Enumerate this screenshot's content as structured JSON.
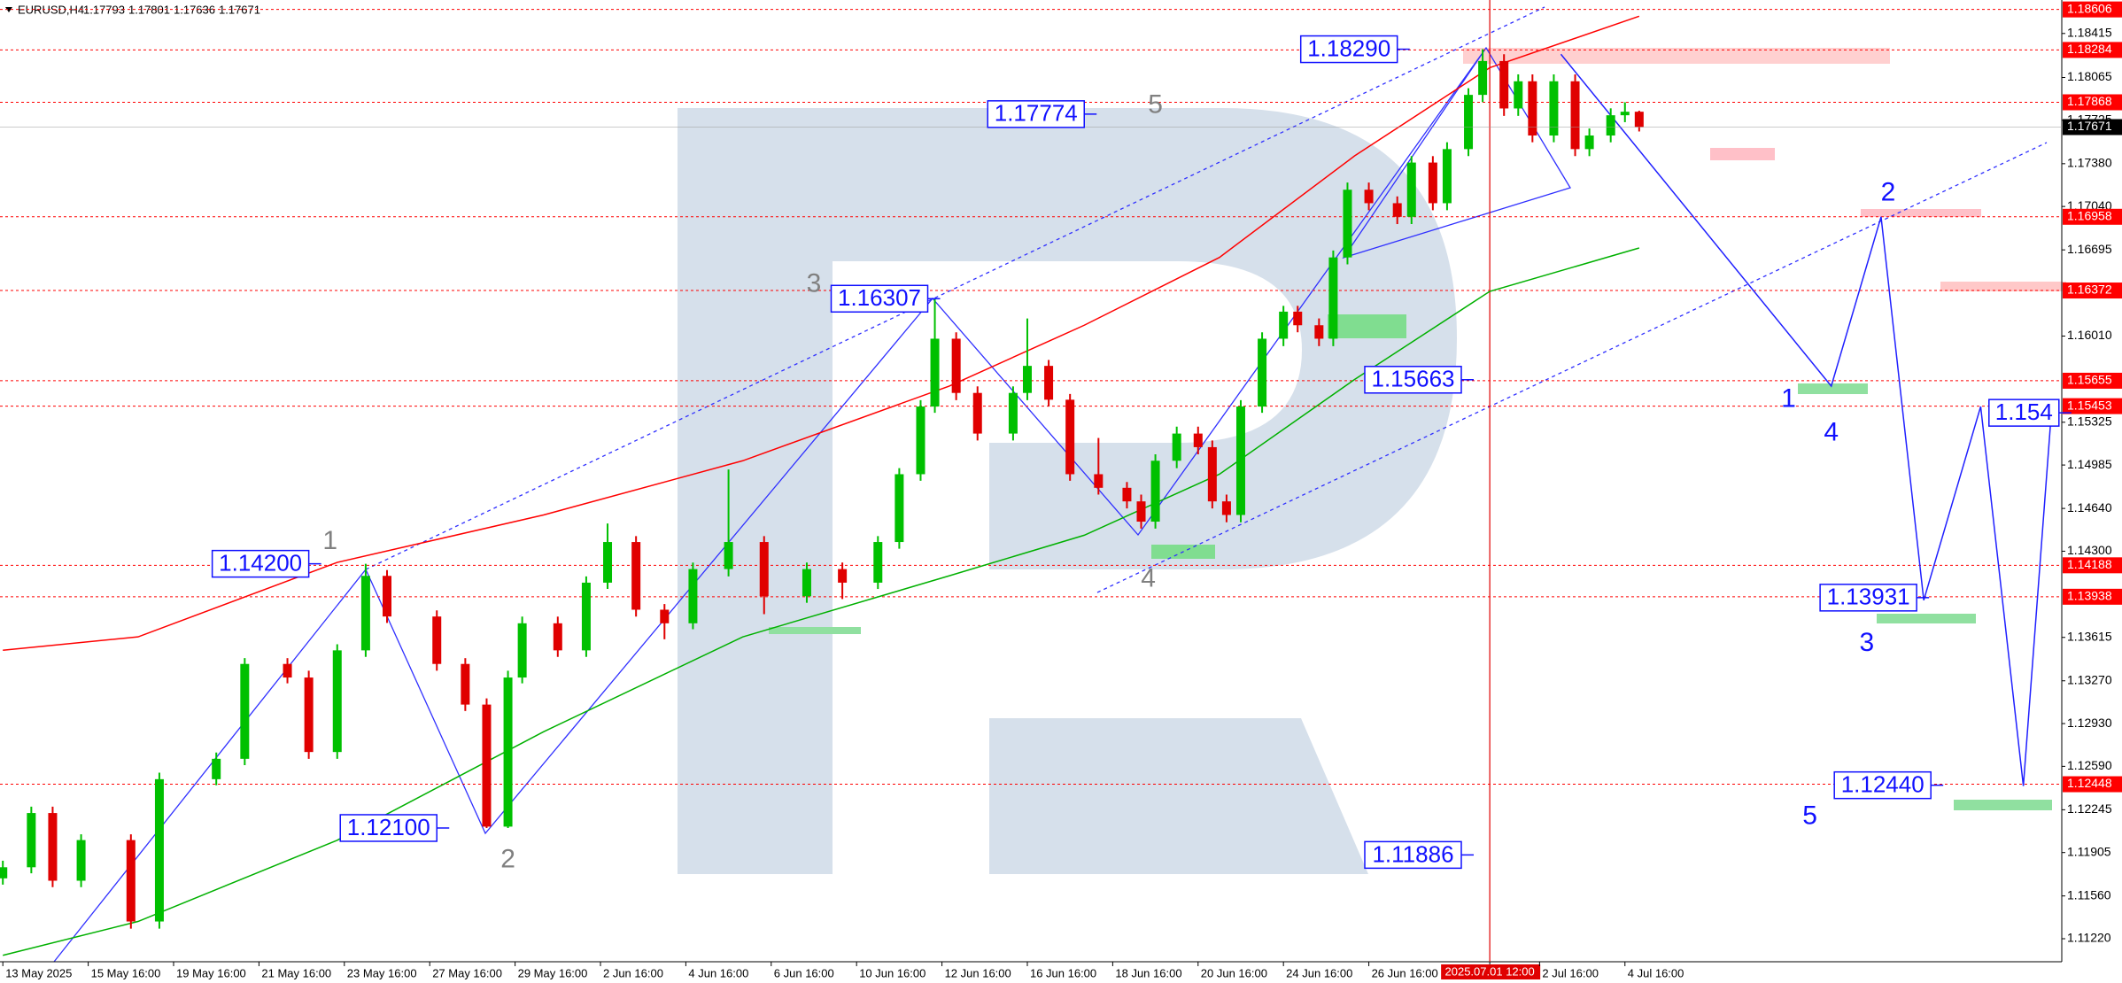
{
  "chart_data": {
    "type": "candlestick",
    "symbol": "EURUSD,H4",
    "up_color": "#00c000",
    "down_color": "#e00000",
    "x": [
      0,
      4,
      7,
      11,
      18,
      22,
      30,
      34,
      40,
      43,
      47,
      51,
      54,
      61,
      65,
      68,
      71,
      73,
      78,
      82,
      85,
      89,
      93,
      97,
      102,
      107,
      113,
      118,
      123,
      126,
      129,
      131,
      134,
      137,
      142,
      144,
      147,
      150,
      154,
      158,
      160,
      162,
      165,
      168,
      170,
      172,
      174,
      177,
      180,
      182,
      185,
      187,
      189,
      192,
      196,
      198,
      201,
      203,
      206,
      208,
      211,
      213,
      215,
      218,
      221,
      223,
      226,
      228,
      230
    ],
    "open": [
      1.117,
      1.11788,
      1.12219,
      1.11681,
      1.12004,
      1.11357,
      1.12488,
      1.1265,
      1.13404,
      1.13296,
      1.12704,
      1.13512,
      1.14104,
      1.13781,
      1.13404,
      1.13081,
      1.12111,
      1.13296,
      1.13727,
      1.13512,
      1.1405,
      1.14373,
      1.13835,
      1.13727,
      1.14158,
      1.14373,
      1.13942,
      1.14158,
      1.1405,
      1.14373,
      1.14912,
      1.1545,
      1.15989,
      1.15558,
      1.15235,
      1.15558,
      1.15773,
      1.15504,
      1.14912,
      1.14804,
      1.14696,
      1.14535,
      1.15019,
      1.15235,
      1.15127,
      1.14696,
      1.14588,
      1.1545,
      1.15989,
      1.16204,
      1.16096,
      1.15989,
      1.16635,
      1.17173,
      1.17066,
      1.16958,
      1.17389,
      1.17066,
      1.17496,
      1.17927,
      1.18196,
      1.17819,
      1.18035,
      1.17604,
      1.18035,
      1.17496,
      1.17604,
      1.17765,
      1.17793
    ],
    "high": [
      1.1184,
      1.1227,
      1.1227,
      1.1205,
      1.1205,
      1.1254,
      1.127,
      1.1345,
      1.1345,
      1.1335,
      1.1356,
      1.142,
      1.1415,
      1.1383,
      1.1345,
      1.1313,
      1.1335,
      1.1378,
      1.1378,
      1.141,
      1.1452,
      1.1442,
      1.1388,
      1.1421,
      1.1495,
      1.1442,
      1.1421,
      1.1421,
      1.1442,
      1.1496,
      1.155,
      1.16307,
      1.1604,
      1.1561,
      1.1561,
      1.1615,
      1.1582,
      1.1555,
      1.152,
      1.1485,
      1.1475,
      1.1507,
      1.1529,
      1.1529,
      1.1518,
      1.1475,
      1.155,
      1.1604,
      1.1625,
      1.1625,
      1.1615,
      1.1669,
      1.1723,
      1.1723,
      1.1712,
      1.1744,
      1.1744,
      1.1755,
      1.1798,
      1.1829,
      1.1825,
      1.1809,
      1.1809,
      1.1809,
      1.1809,
      1.1766,
      1.1782,
      1.17868,
      1.17801
    ],
    "low": [
      1.1165,
      1.1174,
      1.1163,
      1.1163,
      1.113,
      1.113,
      1.1244,
      1.126,
      1.1325,
      1.1265,
      1.1265,
      1.1346,
      1.1373,
      1.1335,
      1.1303,
      1.121,
      1.121,
      1.1325,
      1.1346,
      1.1346,
      1.14,
      1.1378,
      1.136,
      1.1368,
      1.141,
      1.138,
      1.1389,
      1.1392,
      1.14,
      1.1432,
      1.1486,
      1.154,
      1.155,
      1.1518,
      1.1518,
      1.155,
      1.1545,
      1.1486,
      1.1475,
      1.1464,
      1.1448,
      1.1448,
      1.1496,
      1.1507,
      1.1464,
      1.1453,
      1.1453,
      1.154,
      1.1593,
      1.1604,
      1.1593,
      1.1593,
      1.1658,
      1.1701,
      1.169,
      1.169,
      1.1701,
      1.1701,
      1.1744,
      1.1787,
      1.1776,
      1.1776,
      1.1755,
      1.1755,
      1.1744,
      1.1744,
      1.1755,
      1.1771,
      1.17636
    ],
    "close": [
      1.11788,
      1.12219,
      1.11681,
      1.12004,
      1.11357,
      1.12488,
      1.1265,
      1.13404,
      1.13296,
      1.12704,
      1.13512,
      1.14104,
      1.13781,
      1.13404,
      1.13081,
      1.12111,
      1.13296,
      1.13727,
      1.13512,
      1.1405,
      1.14373,
      1.13835,
      1.13727,
      1.14158,
      1.14373,
      1.13942,
      1.14158,
      1.1405,
      1.14373,
      1.14912,
      1.1545,
      1.15989,
      1.15558,
      1.15235,
      1.15558,
      1.15773,
      1.15504,
      1.14912,
      1.14804,
      1.14696,
      1.14535,
      1.15019,
      1.15235,
      1.15127,
      1.14696,
      1.14588,
      1.1545,
      1.15989,
      1.16204,
      1.16096,
      1.15989,
      1.16635,
      1.17173,
      1.17066,
      1.16958,
      1.17389,
      1.17066,
      1.17496,
      1.17927,
      1.18196,
      1.17819,
      1.18035,
      1.17604,
      1.18035,
      1.17496,
      1.17604,
      1.17765,
      1.17793,
      1.17671
    ],
    "xlim": [
      -0.4,
      289.4
    ],
    "ylim": [
      1.11037,
      1.18681
    ],
    "yticks": [
      1.18415,
      1.18065,
      1.17725,
      {
        "value": 1.1738,
        "label": "1.17380"
      },
      {
        "value": 1.1704,
        "label": "1.17040"
      },
      1.16695,
      {
        "value": 1.1601,
        "label": "1.16010"
      },
      1.15325,
      1.14985,
      {
        "value": 1.1464,
        "label": "1.14640"
      },
      {
        "value": 1.143,
        "label": "1.14300"
      },
      1.13615,
      {
        "value": 1.1327,
        "label": "1.13270"
      },
      {
        "value": 1.1293,
        "label": "1.12930"
      },
      {
        "value": 1.1259,
        "label": "1.12590"
      },
      1.12245,
      1.11905,
      {
        "value": 1.1156,
        "label": "1.11560"
      },
      {
        "value": 1.1122,
        "label": "1.11220"
      }
    ],
    "xticks": [
      {
        "value": 0,
        "label": "13 May 2025"
      },
      {
        "value": 12,
        "label": "15 May 16:00"
      },
      {
        "value": 24,
        "label": "19 May 16:00"
      },
      {
        "value": 36,
        "label": "21 May 16:00"
      },
      {
        "value": 48,
        "label": "23 May 16:00"
      },
      {
        "value": 60,
        "label": "27 May 16:00"
      },
      {
        "value": 72,
        "label": "29 May 16:00"
      },
      {
        "value": 84,
        "label": "2 Jun 16:00"
      },
      {
        "value": 96,
        "label": "4 Jun 16:00"
      },
      {
        "value": 108,
        "label": "6 Jun 16:00"
      },
      {
        "value": 120,
        "label": "10 Jun 16:00"
      },
      {
        "value": 132,
        "label": "12 Jun 16:00"
      },
      {
        "value": 144,
        "label": "16 Jun 16:00"
      },
      {
        "value": 156,
        "label": "18 Jun 16:00"
      },
      {
        "value": 168,
        "label": "20 Jun 16:00"
      },
      {
        "value": 180,
        "label": "24 Jun 16:00"
      },
      {
        "value": 192,
        "label": "26 Jun 16:00"
      },
      {
        "value": 209,
        "label": "2025.07.01 12:00"
      },
      {
        "value": 216,
        "label": "2 Jul 16:00"
      },
      {
        "value": 228,
        "label": "4 Jul 16:00"
      }
    ],
    "highlight_xtick": 17,
    "highlight_color": "#e00000",
    "levels": {
      "color": "#ff0000",
      "values": [
        1.18606,
        1.18284,
        1.17868,
        1.16958,
        1.16372,
        1.15655,
        1.15453,
        1.14188,
        1.13938,
        1.12448
      ]
    },
    "current_price": 1.17671,
    "lines": [
      {
        "color": "#ff0000",
        "x": [
          0,
          19,
          47,
          76,
          104,
          133,
          152,
          171,
          190,
          209,
          230
        ],
        "values": [
          1.13513,
          1.13619,
          1.14211,
          1.14588,
          1.15019,
          1.15612,
          1.16096,
          1.16635,
          1.17442,
          1.18143,
          1.18552
        ]
      },
      {
        "color": "#00b000",
        "x": [
          0,
          19,
          47,
          76,
          104,
          133,
          152,
          171,
          190,
          209,
          230
        ],
        "values": [
          1.11088,
          1.11357,
          1.12003,
          1.12865,
          1.13619,
          1.14104,
          1.14427,
          1.14912,
          1.15665,
          1.16365,
          1.1671
        ]
      },
      {
        "color": "#2020ff",
        "x": [
          219,
          257,
          264,
          270,
          278,
          284,
          288
        ],
        "values": [
          1.1825,
          1.15612,
          1.16958,
          1.1391,
          1.1545,
          1.12434,
          1.1545
        ]
      }
    ],
    "price_boxes": [
      {
        "label": "1.18290",
        "value": 1.1829,
        "x": 196
      },
      {
        "label": "1.17774",
        "value": 1.17774,
        "x": 152
      },
      {
        "label": "1.16307",
        "value": 1.16307,
        "x": 130
      },
      {
        "label": "1.15663",
        "value": 1.15663,
        "x": 205
      },
      {
        "label": "1.14200",
        "value": 1.142,
        "x": 43
      },
      {
        "label": "1.12100",
        "value": 1.121,
        "x": 61
      },
      {
        "label": "1.11886",
        "value": 1.11886,
        "x": 205
      },
      {
        "label": "1.13931",
        "value": 1.13931,
        "x": 269
      },
      {
        "label": "1.12440",
        "value": 1.1244,
        "x": 271
      },
      {
        "label": "1.154",
        "value": 1.154,
        "x": 289
      }
    ],
    "wave_labels": [
      {
        "text": "5",
        "x": 162,
        "y": 1.17841,
        "color": "#808080"
      },
      {
        "text": "3",
        "x": 114,
        "y": 1.16419,
        "color": "#808080"
      },
      {
        "text": "1",
        "x": 46,
        "y": 1.14373,
        "color": "#808080"
      },
      {
        "text": "2",
        "x": 71,
        "y": 1.11842,
        "color": "#808080"
      },
      {
        "text": "4",
        "x": 161,
        "y": 1.14072,
        "color": "#808080"
      },
      {
        "text": "2",
        "x": 265,
        "y": 1.17141,
        "color": "#1010ff"
      },
      {
        "text": "1",
        "x": 251,
        "y": 1.15504,
        "color": "#1010ff"
      },
      {
        "text": "4",
        "x": 257,
        "y": 1.15235,
        "color": "#1010ff"
      },
      {
        "text": "3",
        "x": 262,
        "y": 1.13565,
        "color": "#1010ff"
      },
      {
        "text": "5",
        "x": 254,
        "y": 1.12187,
        "color": "#1010ff"
      }
    ]
  }
}
